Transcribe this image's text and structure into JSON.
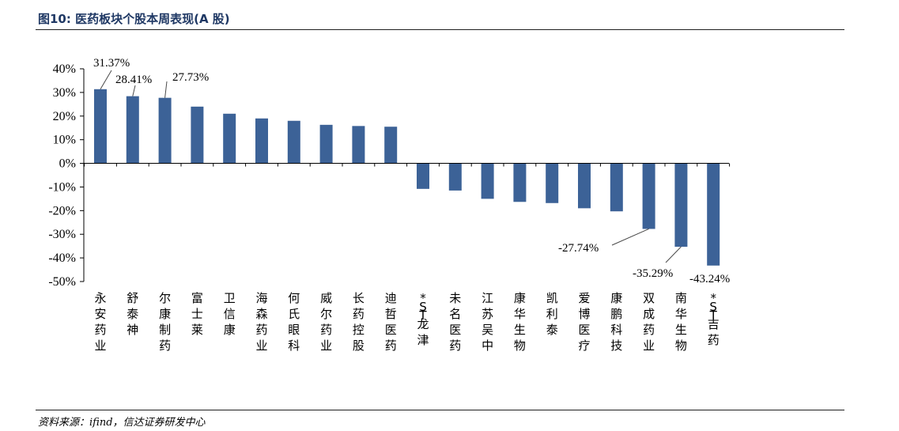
{
  "figure": {
    "title": "图10: 医药板块个股本周表现(A 股)",
    "source": "资料来源：ifind，信达证券研发中心"
  },
  "colors": {
    "bar": "#3c6297",
    "title": "#1f3864",
    "axis": "#000000"
  },
  "chart_data": {
    "type": "bar",
    "title": "",
    "xlabel": "",
    "ylabel": "",
    "ylim": [
      -50,
      40
    ],
    "yticks": [
      40,
      30,
      20,
      10,
      0,
      -10,
      -20,
      -30,
      -40,
      -50
    ],
    "ytick_labels": [
      "40%",
      "30%",
      "20%",
      "10%",
      "0%",
      "-10%",
      "-20%",
      "-30%",
      "-40%",
      "-50%"
    ],
    "categories": [
      "永安药业",
      "舒泰神",
      "尔康制药",
      "富士莱",
      "卫信康",
      "海森药业",
      "何氏眼科",
      "威尔药业",
      "长药控股",
      "迪哲医药",
      "*ST龙津",
      "未名医药",
      "江苏吴中",
      "康华生物",
      "凯利泰",
      "爱博医疗",
      "康鹏科技",
      "双成药业",
      "南华生物",
      "*ST吉药"
    ],
    "values": [
      31.37,
      28.41,
      27.73,
      24.0,
      21.0,
      19.0,
      18.0,
      16.3,
      15.8,
      15.5,
      -10.8,
      -11.5,
      -15.0,
      -16.3,
      -16.8,
      -19.0,
      -20.3,
      -27.74,
      -35.29,
      -43.24
    ],
    "data_labels": [
      {
        "index": 0,
        "text": "31.37%"
      },
      {
        "index": 1,
        "text": "28.41%"
      },
      {
        "index": 2,
        "text": "27.73%"
      },
      {
        "index": 17,
        "text": "-27.74%"
      },
      {
        "index": 18,
        "text": "-35.29%"
      },
      {
        "index": 19,
        "text": "-43.24%"
      }
    ],
    "grid": false,
    "legend": "none"
  }
}
